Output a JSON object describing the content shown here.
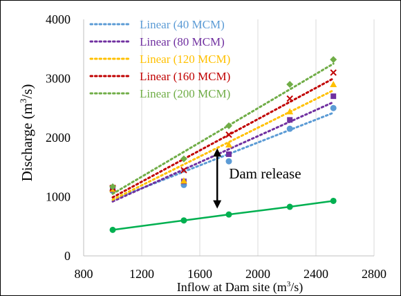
{
  "chart_data": {
    "type": "scatter",
    "title": "",
    "xlabel": "Inflow at Dam site (m3/s)",
    "xlabel_parts": {
      "main": "Inflow at Dam site (m",
      "sup": "3",
      "tail": "/s)"
    },
    "ylabel": "Discharge (m3/s)",
    "ylabel_parts": {
      "main": "Discharge (m",
      "sup": "3",
      "tail": "/s)"
    },
    "xlim": [
      800,
      2800
    ],
    "ylim": [
      0,
      4000
    ],
    "xticks": [
      800,
      1200,
      1600,
      2000,
      2400,
      2800
    ],
    "yticks": [
      0,
      1000,
      2000,
      3000,
      4000
    ],
    "grid": "vertical",
    "legend_position": "top-left",
    "series": [
      {
        "name": "Linear (40 MCM)",
        "color": "#5b9bd5",
        "marker": "circle",
        "x": [
          1000,
          1490,
          1800,
          2220,
          2520
        ],
        "y": [
          1100,
          1200,
          1600,
          2150,
          2500
        ],
        "trend": [
          [
            1000,
            950
          ],
          [
            2520,
            2420
          ]
        ]
      },
      {
        "name": "Linear (80 MCM)",
        "color": "#7030a0",
        "marker": "square",
        "x": [
          1000,
          1490,
          1800,
          2220,
          2520
        ],
        "y": [
          1120,
          1260,
          1720,
          2300,
          2700
        ],
        "trend": [
          [
            1000,
            920
          ],
          [
            2520,
            2600
          ]
        ]
      },
      {
        "name": "Linear (120 MCM)",
        "color": "#ffc000",
        "marker": "triangle",
        "x": [
          1000,
          1490,
          1800,
          2220,
          2520
        ],
        "y": [
          1130,
          1270,
          1880,
          2440,
          2900
        ],
        "trend": [
          [
            1000,
            950
          ],
          [
            2520,
            2800
          ]
        ]
      },
      {
        "name": "Linear (160 MCM)",
        "color": "#c00000",
        "marker": "x",
        "x": [
          1000,
          1490,
          1800,
          2220,
          2520
        ],
        "y": [
          1150,
          1450,
          2050,
          2660,
          3100
        ],
        "trend": [
          [
            1000,
            990
          ],
          [
            2520,
            3000
          ]
        ]
      },
      {
        "name": "Linear (200 MCM)",
        "color": "#70ad47",
        "marker": "diamond",
        "x": [
          1000,
          1490,
          1800,
          2220,
          2520
        ],
        "y": [
          1170,
          1640,
          2200,
          2900,
          3320
        ],
        "trend": [
          [
            1000,
            1050
          ],
          [
            2520,
            3250
          ]
        ]
      },
      {
        "name": "",
        "color": "#00b050",
        "marker": "circle",
        "line": "solid",
        "x": [
          1000,
          1490,
          1800,
          2220,
          2520
        ],
        "y": [
          440,
          600,
          700,
          830,
          930
        ]
      }
    ],
    "annotations": [
      {
        "text": "Dam release",
        "arrow_x": 1720,
        "arrow_from": 1820,
        "arrow_to": 800
      }
    ]
  }
}
